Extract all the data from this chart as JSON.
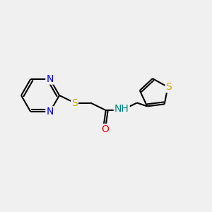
{
  "background_color": "#f0f0f0",
  "bond_color": "#000000",
  "bond_width": 1.5,
  "atom_colors": {
    "N": "#0000ff",
    "S_thioether": "#ccaa00",
    "S_thiophene": "#ccaa00",
    "O": "#ff0000",
    "NH": "#008080",
    "C": "#000000"
  },
  "xlim": [
    0,
    10
  ],
  "ylim": [
    0,
    10
  ]
}
